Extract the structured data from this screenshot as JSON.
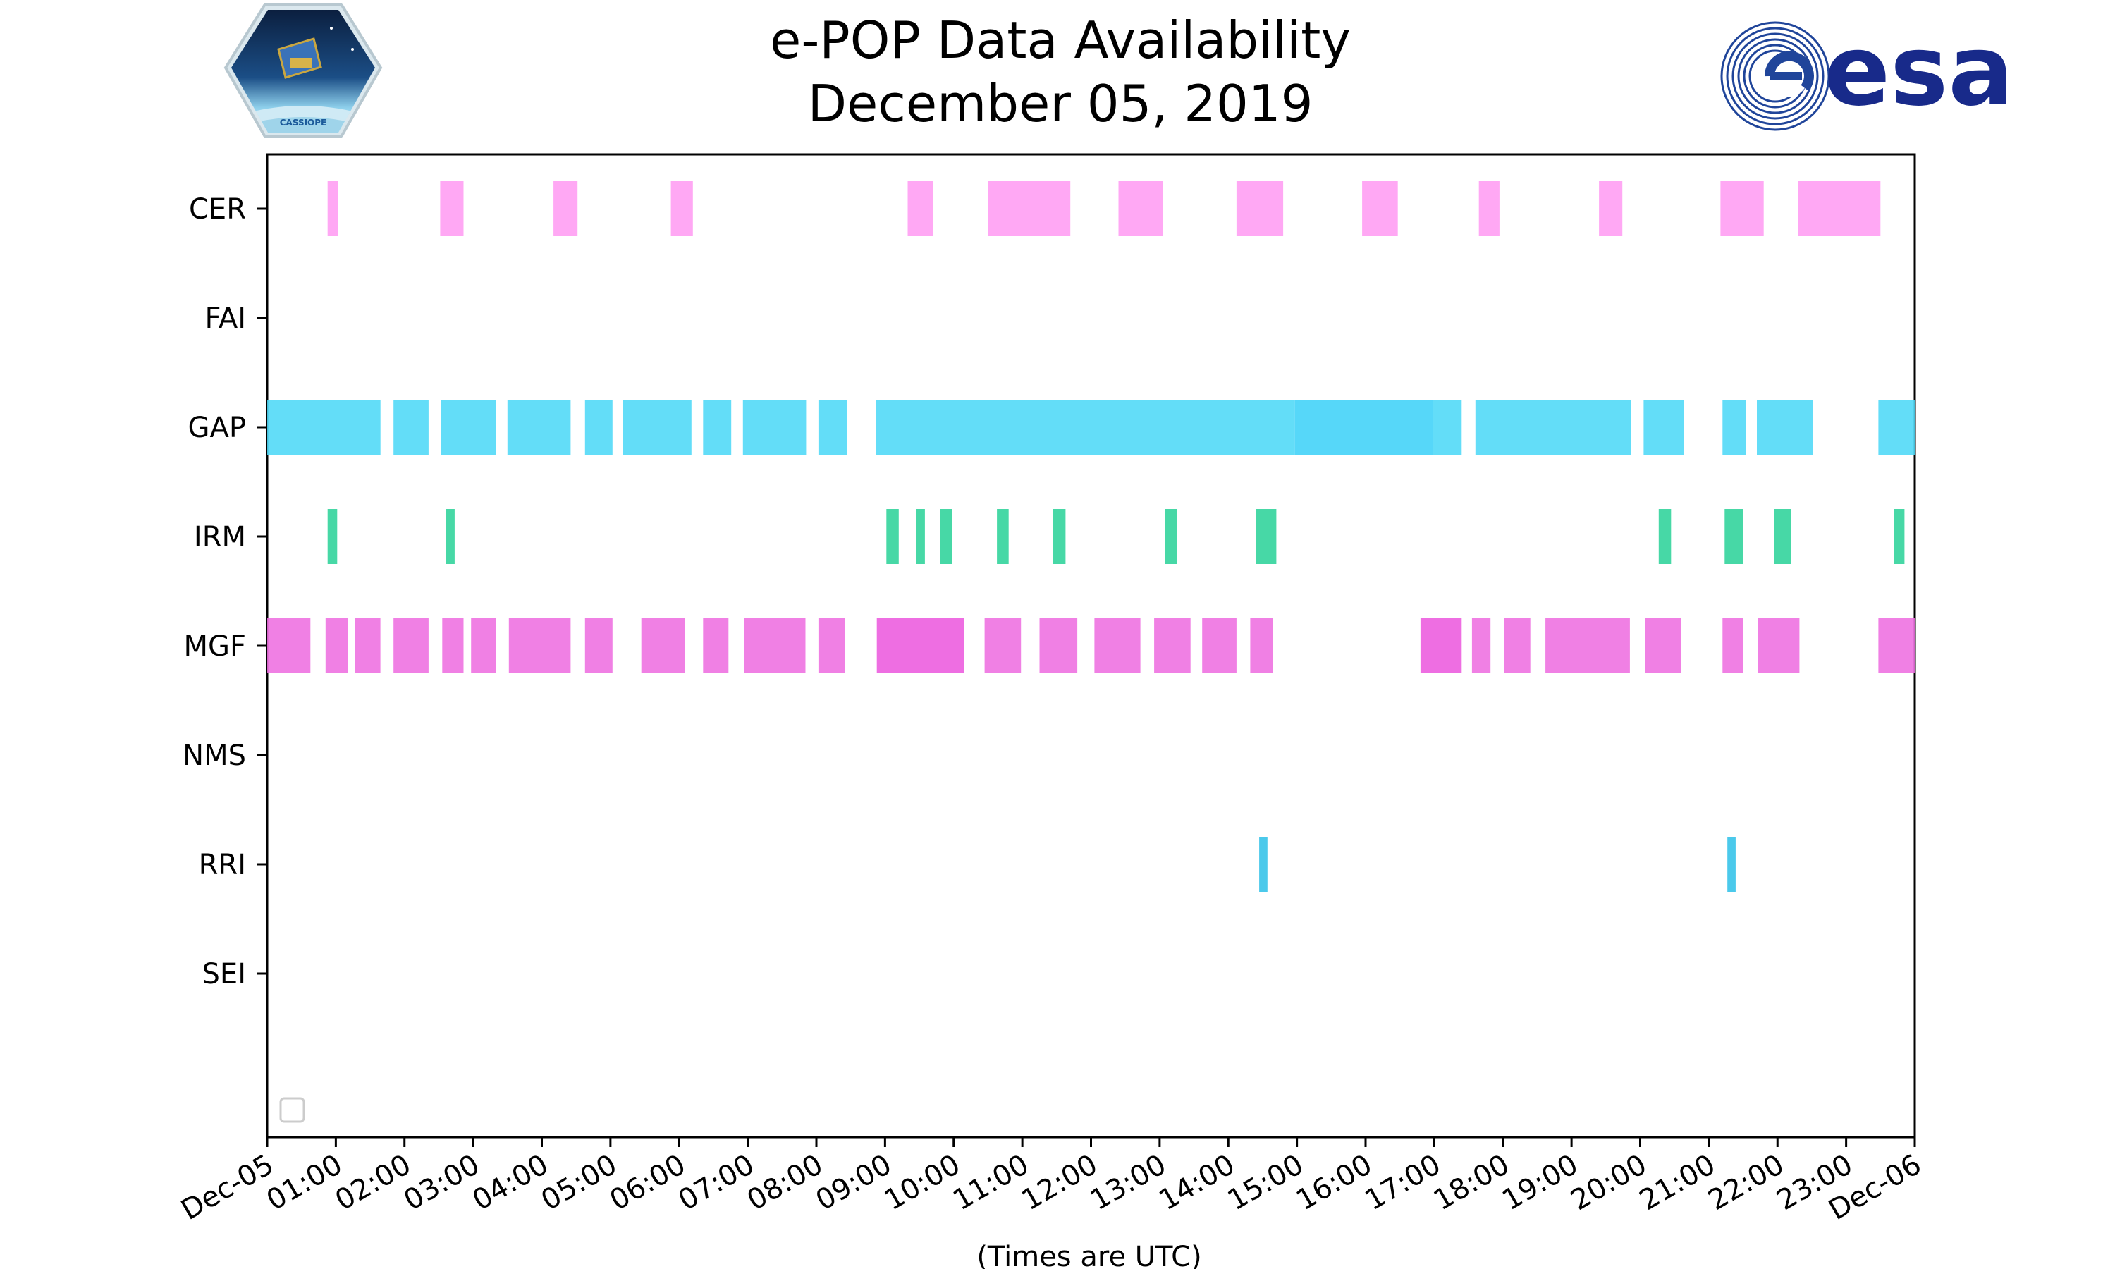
{
  "title_line1": "e-POP Data Availability",
  "title_line2": "December 05, 2019",
  "logos": {
    "left": {
      "name": "CASSIOPE mission patch",
      "text": "CASSIOPE"
    },
    "right": {
      "name": "ESA logo",
      "text": "esa"
    }
  },
  "colors": {
    "CER": "#ff9cf3",
    "GAP": "#4dd8f7",
    "GAP_dark": "#3fd2f8",
    "IRM": "#2ed39a",
    "MGF": "#ee6ee0",
    "MGF_dark": "#ec5ade",
    "RRI": "#32c2e8"
  },
  "chart_data": {
    "type": "timeline",
    "xlabel": "(Times are UTC)",
    "ylabel": "",
    "x_unit": "hours since 2019-12-05 00:00 UTC",
    "xlim": [
      0,
      24
    ],
    "x_ticks": [
      {
        "v": 0,
        "label": "Dec-05"
      },
      {
        "v": 1,
        "label": "01:00"
      },
      {
        "v": 2,
        "label": "02:00"
      },
      {
        "v": 3,
        "label": "03:00"
      },
      {
        "v": 4,
        "label": "04:00"
      },
      {
        "v": 5,
        "label": "05:00"
      },
      {
        "v": 6,
        "label": "06:00"
      },
      {
        "v": 7,
        "label": "07:00"
      },
      {
        "v": 8,
        "label": "08:00"
      },
      {
        "v": 9,
        "label": "09:00"
      },
      {
        "v": 10,
        "label": "10:00"
      },
      {
        "v": 11,
        "label": "11:00"
      },
      {
        "v": 12,
        "label": "12:00"
      },
      {
        "v": 13,
        "label": "13:00"
      },
      {
        "v": 14,
        "label": "14:00"
      },
      {
        "v": 15,
        "label": "15:00"
      },
      {
        "v": 16,
        "label": "16:00"
      },
      {
        "v": 17,
        "label": "17:00"
      },
      {
        "v": 18,
        "label": "18:00"
      },
      {
        "v": 19,
        "label": "19:00"
      },
      {
        "v": 20,
        "label": "20:00"
      },
      {
        "v": 21,
        "label": "21:00"
      },
      {
        "v": 22,
        "label": "22:00"
      },
      {
        "v": 23,
        "label": "23:00"
      },
      {
        "v": 24,
        "label": "Dec-06"
      }
    ],
    "categories": [
      "CER",
      "FAI",
      "GAP",
      "IRM",
      "MGF",
      "NMS",
      "RRI",
      "SEI"
    ],
    "grid": false,
    "legend": "lower-left (empty)",
    "series": [
      {
        "name": "CER",
        "intervals": [
          [
            0.88,
            1.03
          ],
          [
            2.52,
            2.86
          ],
          [
            4.17,
            4.52
          ],
          [
            5.88,
            6.2
          ],
          [
            9.33,
            9.7
          ],
          [
            10.5,
            11.7
          ],
          [
            12.4,
            13.05
          ],
          [
            14.12,
            14.8
          ],
          [
            15.95,
            16.47
          ],
          [
            17.65,
            17.95
          ],
          [
            19.4,
            19.74
          ],
          [
            21.17,
            21.8
          ],
          [
            22.3,
            23.5
          ]
        ]
      },
      {
        "name": "FAI",
        "intervals": []
      },
      {
        "name": "GAP",
        "intervals": [
          [
            0,
            1.65
          ],
          [
            1.84,
            2.35
          ],
          [
            2.53,
            3.33
          ],
          [
            3.5,
            4.42
          ],
          [
            4.63,
            5.03
          ],
          [
            5.18,
            6.18
          ],
          [
            6.35,
            6.76
          ],
          [
            6.93,
            7.85
          ],
          [
            8.03,
            8.45
          ],
          [
            8.87,
            14.97
          ],
          [
            14.97,
            16.98
          ],
          [
            16.98,
            17.4
          ],
          [
            17.6,
            19.87
          ],
          [
            20.05,
            20.64
          ],
          [
            21.2,
            21.54
          ],
          [
            21.7,
            22.52
          ],
          [
            23.47,
            24
          ]
        ]
      },
      {
        "name": "IRM",
        "intervals": [
          [
            0.88,
            1.02
          ],
          [
            2.6,
            2.73
          ],
          [
            9.02,
            9.2
          ],
          [
            9.45,
            9.58
          ],
          [
            9.8,
            9.98
          ],
          [
            10.63,
            10.8
          ],
          [
            11.45,
            11.63
          ],
          [
            13.08,
            13.25
          ],
          [
            14.4,
            14.7
          ],
          [
            20.27,
            20.45
          ],
          [
            21.23,
            21.5
          ],
          [
            21.95,
            22.2
          ],
          [
            23.7,
            23.85
          ]
        ]
      },
      {
        "name": "MGF",
        "intervals": [
          [
            0,
            0.63
          ],
          [
            0.85,
            1.18
          ],
          [
            1.28,
            1.65
          ],
          [
            1.84,
            2.35
          ],
          [
            2.55,
            2.86
          ],
          [
            2.97,
            3.33
          ],
          [
            3.52,
            4.42
          ],
          [
            4.63,
            5.03
          ],
          [
            5.45,
            6.08
          ],
          [
            6.35,
            6.72
          ],
          [
            6.95,
            7.84
          ],
          [
            8.03,
            8.42
          ],
          [
            8.88,
            10.15
          ],
          [
            10.45,
            10.98
          ],
          [
            11.25,
            11.8
          ],
          [
            12.05,
            12.72
          ],
          [
            12.92,
            13.45
          ],
          [
            13.62,
            14.12
          ],
          [
            14.32,
            14.65
          ],
          [
            16.8,
            17.4
          ],
          [
            17.55,
            17.82
          ],
          [
            18.02,
            18.4
          ],
          [
            18.62,
            19.85
          ],
          [
            20.07,
            20.6
          ],
          [
            21.2,
            21.5
          ],
          [
            21.72,
            22.32
          ],
          [
            23.47,
            24
          ]
        ]
      },
      {
        "name": "NMS",
        "intervals": []
      },
      {
        "name": "RRI",
        "intervals": [
          [
            14.45,
            14.57
          ],
          [
            21.27,
            21.39
          ]
        ]
      },
      {
        "name": "SEI",
        "intervals": []
      }
    ]
  }
}
